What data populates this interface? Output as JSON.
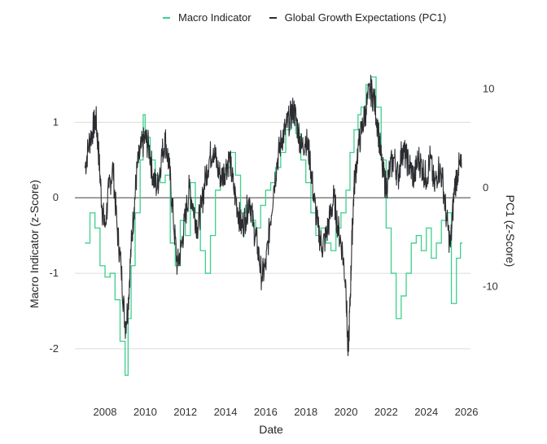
{
  "chart_data": {
    "type": "line",
    "title": "",
    "xlabel": "Date",
    "ylabel": "Macro Indicator (z-Score)",
    "y2label": "PC1 (z-Score)",
    "xlim": [
      2006.5,
      2026.2
    ],
    "ylim": [
      -2.55,
      1.65
    ],
    "y2lim": [
      -20.5,
      11.6
    ],
    "x_ticks": [
      2008,
      2010,
      2012,
      2014,
      2016,
      2018,
      2020,
      2022,
      2024,
      2026
    ],
    "y_ticks": [
      -2,
      -1,
      0,
      1
    ],
    "y2_ticks": [
      -10,
      0,
      10
    ],
    "grid": true,
    "legend": [
      {
        "name": "Macro Indicator",
        "color": "#3ecf8e"
      },
      {
        "name": "Global Growth Expectations (PC1)",
        "color": "#2b2d31"
      }
    ],
    "series": [
      {
        "name": "Macro Indicator",
        "axis": "left",
        "color": "#3ecf8e",
        "style": "step",
        "x": [
          2007.0,
          2007.25,
          2007.5,
          2007.75,
          2008.0,
          2008.25,
          2008.5,
          2008.75,
          2009.0,
          2009.15,
          2009.3,
          2009.5,
          2009.75,
          2009.9,
          2010.0,
          2010.25,
          2010.5,
          2010.75,
          2011.0,
          2011.25,
          2011.5,
          2011.75,
          2012.0,
          2012.25,
          2012.5,
          2012.75,
          2013.0,
          2013.25,
          2013.5,
          2013.75,
          2014.0,
          2014.25,
          2014.5,
          2014.75,
          2015.0,
          2015.25,
          2015.5,
          2015.75,
          2016.0,
          2016.25,
          2016.5,
          2016.75,
          2017.0,
          2017.25,
          2017.5,
          2017.75,
          2018.0,
          2018.25,
          2018.5,
          2018.75,
          2019.0,
          2019.25,
          2019.5,
          2019.75,
          2020.0,
          2020.2,
          2020.4,
          2020.6,
          2020.75,
          2021.0,
          2021.25,
          2021.5,
          2021.75,
          2022.0,
          2022.25,
          2022.5,
          2022.75,
          2023.0,
          2023.25,
          2023.5,
          2023.75,
          2024.0,
          2024.25,
          2024.5,
          2024.75,
          2025.0,
          2025.25,
          2025.5,
          2025.7
        ],
        "y": [
          -0.6,
          -0.2,
          -0.4,
          -0.9,
          -1.05,
          -1.0,
          -1.35,
          -1.9,
          -2.35,
          -1.6,
          -0.9,
          -0.2,
          0.5,
          1.1,
          0.8,
          0.5,
          0.3,
          0.2,
          0.3,
          -0.6,
          -0.9,
          -0.3,
          -0.5,
          0.2,
          -0.2,
          -0.7,
          -1.0,
          -0.5,
          0.1,
          0.3,
          0.4,
          0.6,
          0.3,
          -0.2,
          -0.1,
          -0.3,
          -0.4,
          -0.1,
          0.1,
          0.2,
          0.4,
          0.6,
          0.9,
          1.0,
          0.85,
          0.5,
          0.2,
          -0.2,
          -0.5,
          -0.4,
          -0.6,
          -0.7,
          -0.4,
          -0.2,
          0.1,
          0.6,
          0.9,
          1.1,
          1.2,
          1.5,
          1.6,
          1.2,
          0.5,
          -0.4,
          -1.0,
          -1.6,
          -1.3,
          -1.0,
          -0.6,
          -0.5,
          -0.7,
          -0.4,
          -0.8,
          -0.6,
          -0.3,
          -0.2,
          -1.4,
          -0.8,
          -0.6
        ]
      },
      {
        "name": "Global Growth Expectations (PC1)",
        "axis": "right",
        "color": "#2b2d31",
        "style": "line",
        "x": [
          2007.0,
          2007.2,
          2007.4,
          2007.55,
          2007.7,
          2007.85,
          2008.0,
          2008.2,
          2008.4,
          2008.6,
          2008.8,
          2009.0,
          2009.15,
          2009.3,
          2009.45,
          2009.6,
          2009.8,
          2010.0,
          2010.2,
          2010.4,
          2010.6,
          2010.8,
          2011.0,
          2011.2,
          2011.4,
          2011.6,
          2011.8,
          2012.0,
          2012.2,
          2012.4,
          2012.6,
          2012.8,
          2013.0,
          2013.2,
          2013.4,
          2013.6,
          2013.8,
          2014.0,
          2014.2,
          2014.4,
          2014.6,
          2014.8,
          2015.0,
          2015.2,
          2015.4,
          2015.6,
          2015.8,
          2016.0,
          2016.2,
          2016.4,
          2016.6,
          2016.8,
          2017.0,
          2017.2,
          2017.4,
          2017.6,
          2017.8,
          2018.0,
          2018.2,
          2018.4,
          2018.6,
          2018.8,
          2019.0,
          2019.2,
          2019.4,
          2019.6,
          2019.8,
          2020.0,
          2020.1,
          2020.2,
          2020.3,
          2020.4,
          2020.6,
          2020.8,
          2021.0,
          2021.2,
          2021.4,
          2021.6,
          2021.8,
          2022.0,
          2022.2,
          2022.4,
          2022.6,
          2022.8,
          2023.0,
          2023.2,
          2023.4,
          2023.6,
          2023.8,
          2024.0,
          2024.2,
          2024.4,
          2024.6,
          2024.8,
          2025.0,
          2025.2,
          2025.4,
          2025.6,
          2025.75
        ],
        "y": [
          2.0,
          4.5,
          6.0,
          7.0,
          3.0,
          -2.0,
          -4.0,
          0.0,
          2.0,
          -4.0,
          -8.0,
          -14.0,
          -12.0,
          -6.0,
          -2.0,
          2.0,
          4.0,
          5.0,
          4.0,
          1.0,
          0.0,
          3.0,
          5.0,
          2.0,
          -3.0,
          -8.0,
          -6.0,
          -3.0,
          0.0,
          -2.0,
          -4.0,
          -2.0,
          1.0,
          3.0,
          4.0,
          2.0,
          1.0,
          2.0,
          3.0,
          0.0,
          -2.0,
          -4.0,
          -3.0,
          -1.0,
          -4.0,
          -6.0,
          -9.0,
          -8.0,
          -4.0,
          0.0,
          3.0,
          5.0,
          6.0,
          7.0,
          8.0,
          6.0,
          4.0,
          5.0,
          3.0,
          -1.0,
          -4.0,
          -6.0,
          -5.0,
          -3.0,
          -1.0,
          -4.0,
          -6.0,
          -10.0,
          -17.0,
          -12.0,
          -5.0,
          0.0,
          4.0,
          6.0,
          8.0,
          10.0,
          9.0,
          6.0,
          2.0,
          0.0,
          2.0,
          3.0,
          1.0,
          4.0,
          3.0,
          2.0,
          1.0,
          3.0,
          2.0,
          1.0,
          3.0,
          0.0,
          2.0,
          1.0,
          -3.0,
          -6.0,
          0.0,
          2.0,
          2.0
        ]
      }
    ]
  }
}
